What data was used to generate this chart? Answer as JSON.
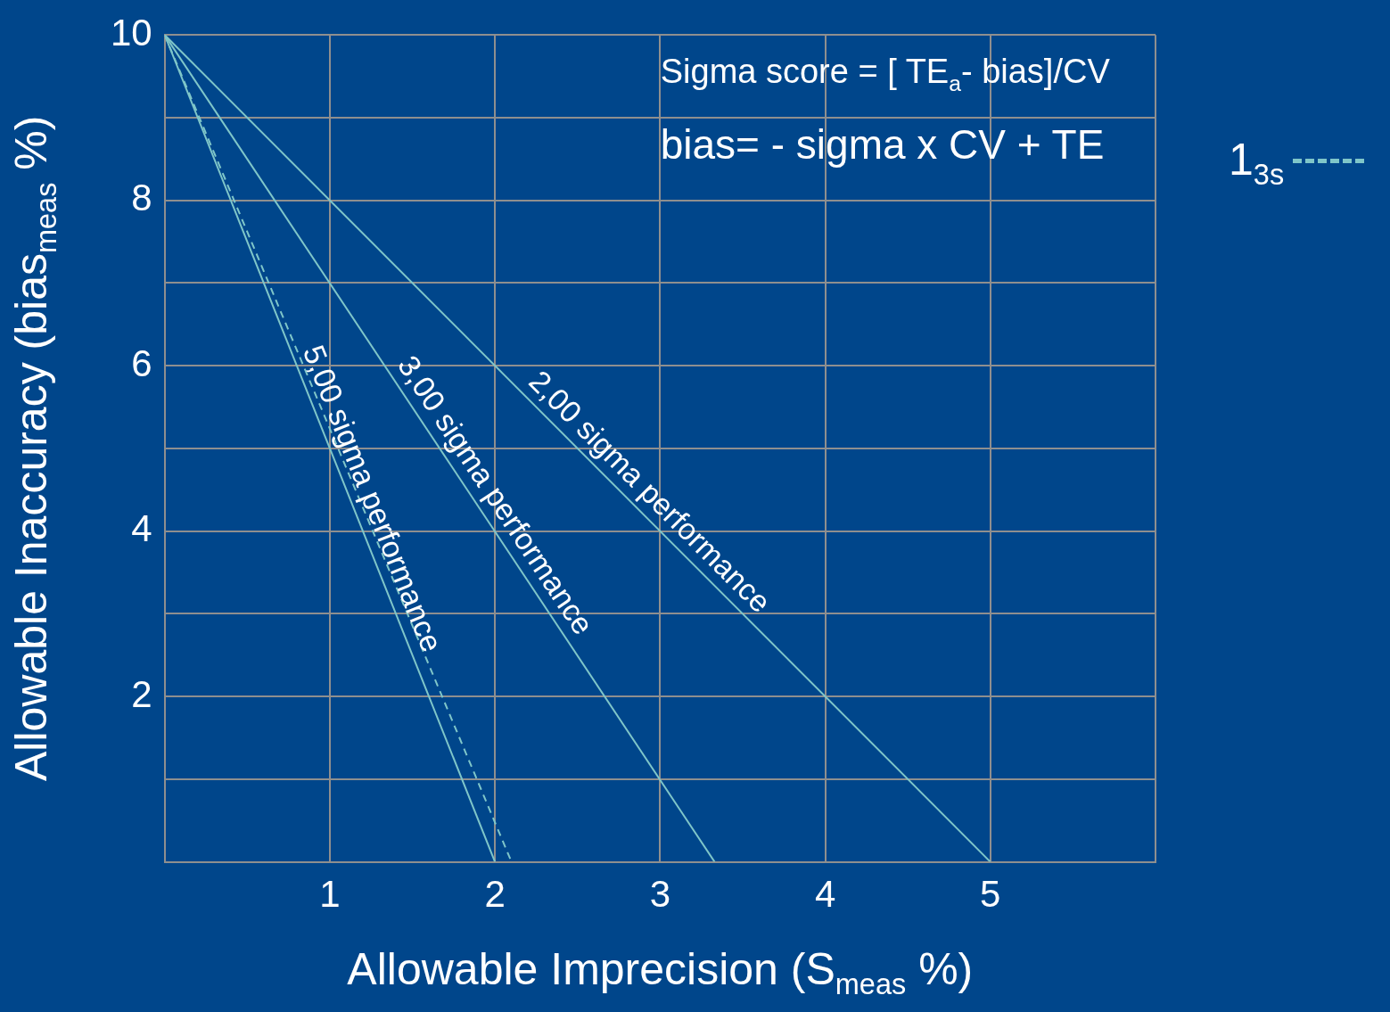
{
  "chart_data": {
    "type": "line",
    "xlabel": "Allowable Imprecision (S$_{meas}$ %)",
    "ylabel": "Allowable Inaccuracy (bias$_{meas}$ %)",
    "annotations": [
      "Sigma score = [ TE$_{a}$- bias]/CV",
      "bias= - sigma x CV + TE"
    ],
    "xlim": [
      0,
      6
    ],
    "xticks": [
      {
        "value": 0,
        "label": null
      },
      1,
      2,
      3,
      4,
      5,
      {
        "value": 6,
        "label": null
      }
    ],
    "ylim": [
      0,
      10
    ],
    "yticks": [
      {
        "value": 0,
        "label": null
      },
      {
        "value": 1,
        "label": null
      },
      2,
      {
        "value": 3,
        "label": null
      },
      4,
      {
        "value": 5,
        "label": null
      },
      6,
      {
        "value": 7,
        "label": null
      },
      8,
      {
        "value": 9,
        "label": null
      },
      10
    ],
    "grid": true,
    "legend": "right",
    "marker": "none",
    "series": [
      {
        "name": "2,00 sigma performance",
        "color": "#7fc6c9",
        "x": [
          0,
          5
        ],
        "values": [
          10,
          0
        ]
      },
      {
        "name": "3,00 sigma performance",
        "color": "#7fc6c9",
        "x": [
          0,
          3.33
        ],
        "values": [
          10,
          0
        ]
      },
      {
        "name": "5,00 sigma performance",
        "color": "#7fc6c9",
        "x": [
          0,
          2
        ],
        "values": [
          10,
          0
        ]
      },
      {
        "name": "1$_{3s}$",
        "color": "#7fc6c9",
        "x": [
          0,
          2.1
        ],
        "values": [
          10,
          0
        ],
        "line_style": "dashed"
      }
    ]
  }
}
